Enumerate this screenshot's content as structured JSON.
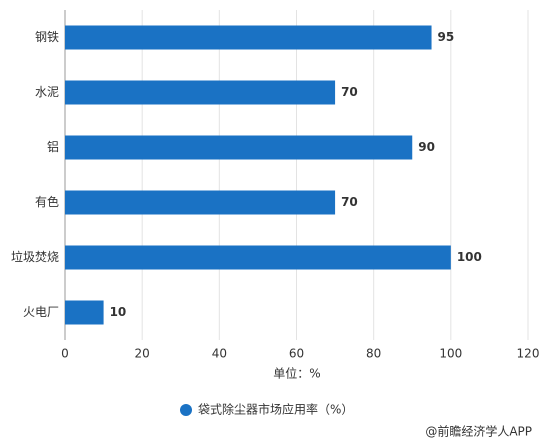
{
  "chart_data": {
    "type": "hbar",
    "categories": [
      "钢铁",
      "水泥",
      "铝",
      "有色",
      "垃圾焚烧",
      "火电厂"
    ],
    "series": [
      {
        "name": "袋式除尘器市场应用率（%）",
        "color": "#1a72c4",
        "values": [
          95,
          70,
          90,
          70,
          100,
          10
        ]
      }
    ],
    "x_label": "单位：%",
    "xlim": [
      0,
      120
    ],
    "xticks": [
      0,
      20,
      40,
      60,
      80,
      100,
      120
    ],
    "grid": true
  },
  "footer": "@前瞻经济学人APP"
}
